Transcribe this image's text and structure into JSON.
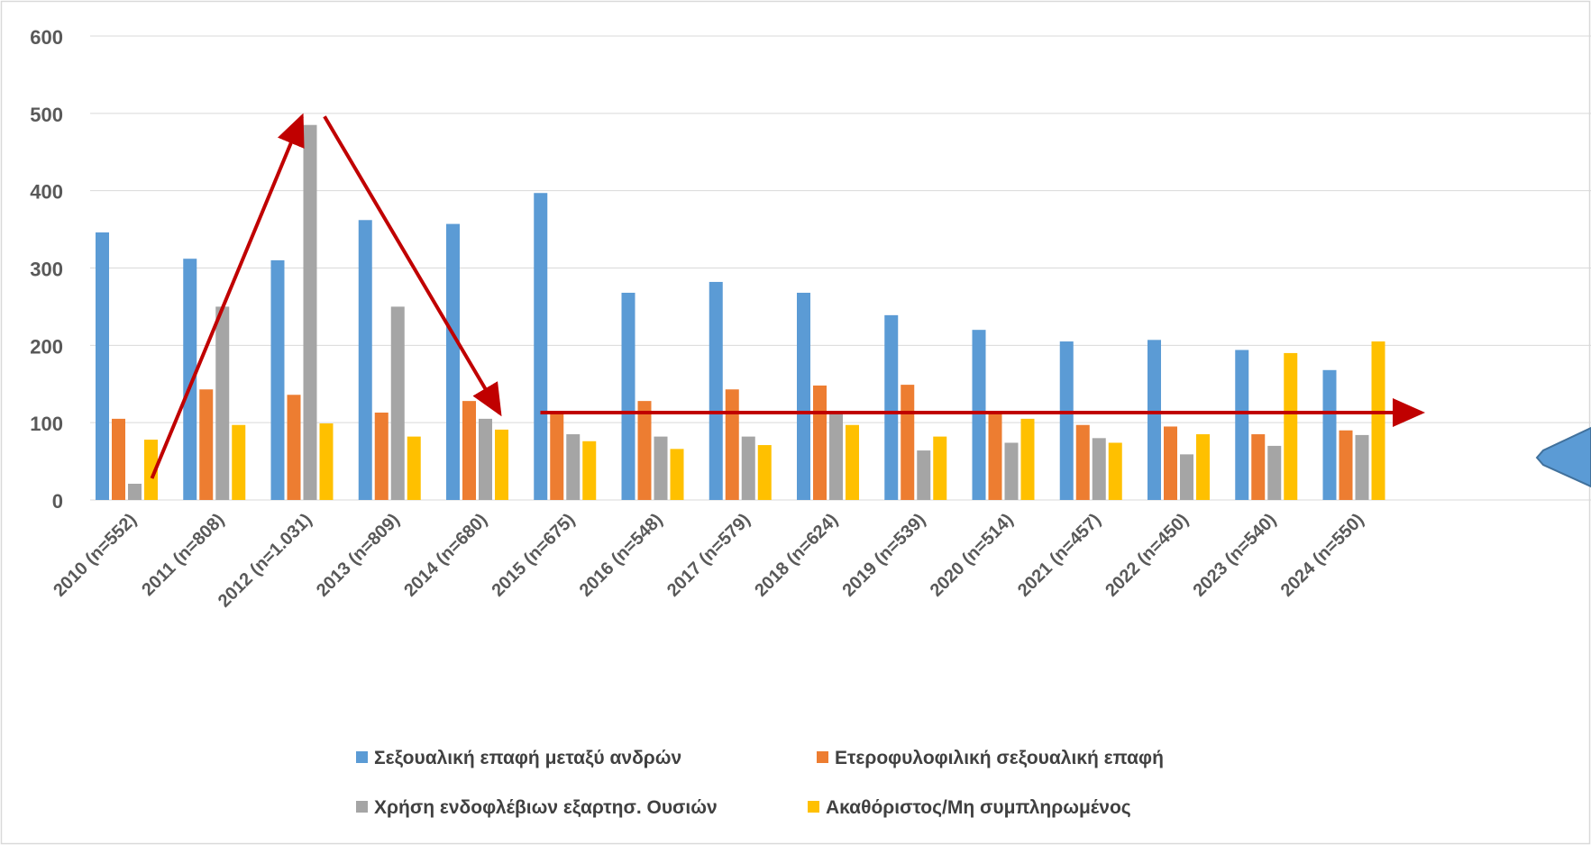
{
  "chart_data": {
    "type": "bar",
    "categories": [
      "2010 (n=552)",
      "2011 (n=808)",
      "2012 (n=1.031)",
      "2013 (n=809)",
      "2014 (n=680)",
      "2015 (n=675)",
      "2016 (n=548)",
      "2017 (n=579)",
      "2018 (n=624)",
      "2019 (n=539)",
      "2020 (n=514)",
      "2021 (n=457)",
      "2022 (n=450)",
      "2023 (n=540)",
      "2024 (n=550)"
    ],
    "series": [
      {
        "name": "Σεξουαλική επαφή μεταξύ ανδρών",
        "color": "#5b9bd5",
        "values": [
          346,
          312,
          310,
          362,
          357,
          397,
          268,
          282,
          268,
          239,
          220,
          205,
          207,
          194,
          168
        ]
      },
      {
        "name": "Ετεροφυλοφιλική σεξουαλική επαφή",
        "color": "#ed7d31",
        "values": [
          105,
          143,
          136,
          113,
          128,
          115,
          128,
          143,
          148,
          149,
          115,
          97,
          95,
          85,
          90
        ]
      },
      {
        "name": "Χρήση ενδοφλέβιων εξαρτησ. Ουσιών",
        "color": "#a5a5a5",
        "values": [
          21,
          250,
          485,
          250,
          105,
          85,
          82,
          82,
          112,
          64,
          74,
          80,
          59,
          70,
          84
        ]
      },
      {
        "name": "Ακαθόριστος/Μη συμπληρωμένος",
        "color": "#ffc000",
        "values": [
          78,
          97,
          99,
          82,
          91,
          76,
          66,
          71,
          97,
          82,
          105,
          74,
          85,
          190,
          205
        ]
      }
    ],
    "yticks": [
      0,
      100,
      200,
      300,
      400,
      500,
      600
    ],
    "ylim": [
      0,
      600
    ],
    "grid": true,
    "legend_position": "bottom",
    "annotations": [
      {
        "type": "arrow",
        "color": "#c00000",
        "from": {
          "category": "2010 (n=552)",
          "y": 28
        },
        "to": {
          "category": "2012 (n=1.031)",
          "y": 496
        }
      },
      {
        "type": "arrow",
        "color": "#c00000",
        "from": {
          "category": "2012 (n=1.031)",
          "y": 496
        },
        "to": {
          "category": "2014 (n=680)",
          "y": 112
        }
      },
      {
        "type": "arrow",
        "color": "#c00000",
        "from": {
          "category": "2014 (n=680)",
          "y": 113
        },
        "to": {
          "category": "2024 (n=550)",
          "y": 113
        }
      },
      {
        "type": "callout-shape",
        "color": "#5b9bd5"
      }
    ]
  }
}
